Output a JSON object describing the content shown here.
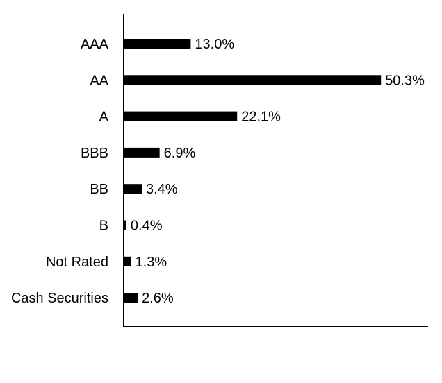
{
  "chart_data": {
    "type": "bar",
    "orientation": "horizontal",
    "categories": [
      "AAA",
      "AA",
      "A",
      "BBB",
      "BB",
      "B",
      "Not Rated",
      "Cash Securities"
    ],
    "values": [
      13.0,
      50.3,
      22.1,
      6.9,
      3.4,
      0.4,
      1.3,
      2.6
    ],
    "value_labels": [
      "13.0%",
      "50.3%",
      "22.1%",
      "6.9%",
      "3.4%",
      "0.4%",
      "1.3%",
      "2.6%"
    ],
    "xlim": [
      0,
      60
    ],
    "grid": false,
    "legend": "none",
    "bar_color": "#000000"
  }
}
